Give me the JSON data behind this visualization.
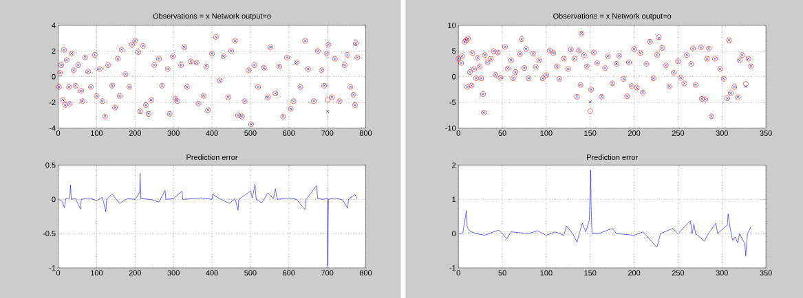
{
  "chart_data": [
    {
      "type": "scatter",
      "title": "Observations = x     Network output=o",
      "xlim": [
        0,
        800
      ],
      "ylim": [
        -4,
        4
      ],
      "xticks": [
        0,
        100,
        200,
        300,
        400,
        500,
        600,
        700,
        800
      ],
      "yticks": [
        -4,
        -2,
        0,
        2,
        4
      ],
      "grid": true,
      "x": [
        2,
        5,
        8,
        12,
        15,
        18,
        22,
        28,
        30,
        35,
        40,
        45,
        52,
        60,
        63,
        70,
        78,
        85,
        95,
        100,
        108,
        115,
        122,
        130,
        140,
        148,
        155,
        160,
        165,
        175,
        185,
        192,
        200,
        208,
        213,
        220,
        228,
        235,
        242,
        250,
        262,
        270,
        285,
        290,
        298,
        305,
        310,
        320,
        328,
        335,
        345,
        360,
        365,
        378,
        385,
        390,
        400,
        410,
        420,
        430,
        442,
        450,
        460,
        468,
        478,
        485,
        495,
        502,
        510,
        520,
        535,
        545,
        552,
        565,
        575,
        585,
        595,
        605,
        612,
        620,
        630,
        642,
        650,
        665,
        675,
        685,
        692,
        698,
        701,
        703,
        712,
        720,
        732,
        745,
        752,
        760,
        768,
        772,
        774,
        778
      ],
      "series": [
        {
          "color": "#0000ff",
          "marker": "cross",
          "values": [
            -0.8,
            0.3,
            0.9,
            -1.8,
            2.1,
            -2.2,
            1.3,
            -0.8,
            -2.1,
            1.8,
            0.5,
            -0.7,
            0.9,
            -1.1,
            -1.9,
            1.5,
            0.4,
            -0.8,
            1.7,
            -1.5,
            0.6,
            -1.9,
            -3.1,
            0.9,
            -0.7,
            -2.4,
            1.4,
            -1.5,
            2.1,
            0.2,
            -0.8,
            2.5,
            2.8,
            1.9,
            -2.7,
            2.4,
            -2.2,
            -2.9,
            -1.8,
            0.9,
            1.4,
            -0.7,
            0.6,
            -2.9,
            1.6,
            -1.7,
            -1.9,
            0.9,
            2.3,
            -0.8,
            1.2,
            1.1,
            -2.1,
            -1.5,
            0.8,
            -2.6,
            1.8,
            3.1,
            -0.3,
            1.6,
            -1.6,
            2.0,
            2.8,
            -3.0,
            -3.1,
            -1.9,
            0.5,
            -3.7,
            0.9,
            -0.8,
            0.7,
            -1.6,
            2.3,
            -1.3,
            0.8,
            -3.1,
            1.5,
            -2.5,
            -1.9,
            1.1,
            -0.8,
            2.8,
            0.6,
            -1.9,
            2.0,
            0.5,
            -0.7,
            1.8,
            -2.7,
            2.5,
            -1.6,
            1.4,
            -1.9,
            0.9,
            1.7,
            -0.8,
            -1.4,
            -2.2,
            2.6,
            1.5
          ]
        },
        {
          "color": "#ff0000",
          "marker": "circle",
          "values": [
            -0.8,
            0.3,
            0.9,
            -1.8,
            2.1,
            -2.2,
            1.3,
            -0.8,
            -2.1,
            1.8,
            0.5,
            -0.7,
            0.9,
            -1.1,
            -1.9,
            1.5,
            0.4,
            -0.8,
            1.7,
            -1.5,
            0.6,
            -1.9,
            -3.1,
            0.9,
            -0.7,
            -2.4,
            1.4,
            -1.5,
            2.1,
            0.2,
            -0.8,
            2.5,
            2.8,
            1.9,
            -2.7,
            2.4,
            -2.2,
            -2.9,
            -1.8,
            0.9,
            1.4,
            -0.7,
            0.6,
            -2.9,
            1.6,
            -1.7,
            -1.9,
            0.9,
            2.3,
            -0.8,
            1.2,
            1.1,
            -2.1,
            -1.5,
            0.8,
            -2.6,
            1.8,
            3.1,
            -0.3,
            1.6,
            -1.6,
            2.0,
            2.8,
            -3.0,
            -3.1,
            -1.9,
            0.5,
            -3.7,
            0.9,
            -0.8,
            0.7,
            -1.6,
            2.3,
            -1.3,
            0.8,
            -3.1,
            1.5,
            -2.5,
            -1.9,
            1.1,
            -0.8,
            2.8,
            0.6,
            -1.9,
            2.0,
            0.5,
            -0.7,
            1.8,
            -1.8,
            2.5,
            -1.6,
            1.4,
            -1.9,
            0.9,
            1.7,
            -0.8,
            -1.4,
            -2.2,
            2.6,
            1.5
          ]
        }
      ]
    },
    {
      "type": "scatter",
      "title": "Observations = x     Network output=o",
      "xlim": [
        0,
        350
      ],
      "ylim": [
        -10,
        10
      ],
      "xticks": [
        0,
        50,
        100,
        150,
        200,
        250,
        300,
        350
      ],
      "yticks": [
        -10,
        -5,
        0,
        5,
        10
      ],
      "grid": true,
      "x": [
        0,
        3,
        4,
        7,
        9,
        10,
        11,
        13,
        15,
        16,
        18,
        20,
        22,
        24,
        26,
        28,
        29,
        30,
        33,
        37,
        40,
        42,
        45,
        48,
        53,
        56,
        60,
        62,
        65,
        70,
        72,
        75,
        77,
        80,
        85,
        88,
        92,
        96,
        100,
        104,
        108,
        112,
        115,
        120,
        125,
        128,
        132,
        135,
        137,
        139,
        140,
        143,
        146,
        150,
        151,
        154,
        158,
        163,
        167,
        170,
        175,
        180,
        183,
        188,
        192,
        194,
        197,
        200,
        203,
        207,
        210,
        214,
        218,
        222,
        226,
        228,
        232,
        236,
        240,
        245,
        250,
        253,
        257,
        260,
        265,
        267,
        270,
        276,
        277,
        281,
        283,
        285,
        288,
        292,
        298,
        302,
        306,
        308,
        310,
        314,
        318,
        320,
        323,
        327,
        330,
        333
      ],
      "series": [
        {
          "color": "#0000ff",
          "marker": "cross",
          "values": [
            3.5,
            2.7,
            4,
            6.8,
            7.1,
            -2,
            7.4,
            0.9,
            -1.7,
            4.6,
            1.5,
            -0.3,
            3.7,
            2,
            -0.3,
            -3.4,
            -7,
            4.2,
            2.8,
            3.5,
            5,
            0.4,
            4.7,
            -0.2,
            5.8,
            1.6,
            3.2,
            -0.3,
            0.9,
            4.4,
            7.3,
            1.7,
            5.4,
            -0.3,
            4.5,
            1.9,
            3.2,
            -0.3,
            0.3,
            5.1,
            4.6,
            2.0,
            -0.4,
            3.5,
            1.5,
            5.3,
            3.5,
            -3.9,
            5.1,
            -1.6,
            8.4,
            4.2,
            2.0,
            -4.9,
            -2.5,
            4.7,
            2.7,
            -3.9,
            1.7,
            4,
            -1.3,
            2.5,
            4.1,
            -0.4,
            -3.8,
            2.8,
            -1.8,
            5.4,
            -2.1,
            4.6,
            -3.1,
            2.5,
            6.8,
            -0.3,
            4.3,
            7.5,
            5.6,
            2.2,
            -1.9,
            0.8,
            3,
            -0.2,
            -1.3,
            4.2,
            2.5,
            5.5,
            -1.6,
            5.7,
            -4.3,
            -4.4,
            3.5,
            5.5,
            -7.7,
            3.5,
            1.5,
            -0.4,
            -4.2,
            7.1,
            -3.2,
            -2,
            -4,
            3.2,
            4.2,
            -1.9,
            3.5,
            2
          ]
        },
        {
          "color": "#ff0000",
          "marker": "circle",
          "values": [
            3.5,
            2.7,
            4,
            6.8,
            7.1,
            -2,
            7.4,
            0.9,
            -1.7,
            4.6,
            1.5,
            -0.3,
            3.7,
            2,
            -0.3,
            -3.4,
            -7,
            4.2,
            2.8,
            3.5,
            5,
            0.4,
            4.7,
            -0.2,
            5.8,
            1.6,
            3.2,
            -0.3,
            0.9,
            4.4,
            7.3,
            1.7,
            5.4,
            -0.3,
            4.5,
            1.9,
            3.2,
            -0.3,
            0.3,
            5.1,
            4.6,
            2.0,
            -0.4,
            3.5,
            1.5,
            5.3,
            3.5,
            -3.9,
            5.1,
            -1.6,
            8.4,
            4.2,
            2.0,
            -6.7,
            -2.5,
            4.7,
            2.7,
            -3.9,
            1.7,
            4,
            -1.3,
            2.5,
            4.1,
            -0.4,
            -3.8,
            2.8,
            -1.8,
            5.4,
            -2.1,
            4.6,
            -3.1,
            2.5,
            6.8,
            -0.3,
            4.3,
            7.7,
            5.6,
            2.2,
            -1.9,
            0.8,
            3,
            -0.2,
            -1.3,
            4.2,
            2.5,
            5.5,
            -1.6,
            5.7,
            -4.3,
            -4.4,
            3.5,
            5.5,
            -7.7,
            3.5,
            1.5,
            -0.4,
            -4.2,
            7.1,
            -3.2,
            -2,
            -4,
            3.2,
            4.2,
            -1.4,
            3.5,
            2
          ]
        }
      ]
    },
    {
      "type": "line",
      "title": "Prediction error",
      "xlim": [
        0,
        800
      ],
      "ylim": [
        -1,
        0.5
      ],
      "xticks": [
        0,
        100,
        200,
        300,
        400,
        500,
        600,
        700,
        800
      ],
      "yticks": [
        -1,
        -0.5,
        0,
        0.5
      ],
      "grid": true,
      "x": [
        1,
        10,
        16,
        20,
        30,
        32,
        34,
        45,
        58,
        60,
        80,
        100,
        115,
        124,
        126,
        140,
        160,
        180,
        200,
        212,
        213,
        215,
        240,
        262,
        278,
        280,
        300,
        322,
        324,
        350,
        370,
        400,
        402,
        420,
        445,
        460,
        468,
        470,
        500,
        505,
        512,
        515,
        530,
        545,
        560,
        565,
        570,
        600,
        620,
        642,
        645,
        672,
        675,
        690,
        700,
        701,
        703,
        720,
        740,
        753,
        755,
        772,
        778
      ],
      "series": [
        {
          "color": "#0000ff",
          "values": [
            0,
            -0.03,
            -0.12,
            0.01,
            0.02,
            0.21,
            0,
            0.01,
            -0.14,
            0,
            0.02,
            -0.02,
            0.03,
            -0.18,
            0,
            0.08,
            -0.06,
            0.01,
            0,
            0.1,
            0.38,
            0.01,
            0,
            -0.04,
            0.13,
            0,
            0.01,
            0.12,
            0,
            0.01,
            0.02,
            0,
            0.07,
            0.01,
            -0.06,
            0.01,
            -0.16,
            0,
            0.12,
            0.02,
            0.22,
            0,
            -0.05,
            0.09,
            0.01,
            0.15,
            0,
            0.02,
            0,
            -0.15,
            0,
            0.2,
            0.01,
            0,
            0.02,
            -0.98,
            0,
            0.02,
            -0.01,
            -0.13,
            0,
            0.07,
            0.01
          ]
        }
      ]
    },
    {
      "type": "line",
      "title": "Prediction error",
      "xlim": [
        0,
        350
      ],
      "ylim": [
        -1,
        2
      ],
      "xticks": [
        0,
        50,
        100,
        150,
        200,
        250,
        300,
        350
      ],
      "yticks": [
        -1,
        0,
        1,
        2
      ],
      "grid": true,
      "x": [
        1,
        5,
        8,
        9,
        10,
        12,
        15,
        20,
        30,
        40,
        46,
        50,
        55,
        60,
        80,
        90,
        100,
        110,
        120,
        123,
        130,
        135,
        138,
        141,
        145,
        149,
        150,
        150.5,
        151,
        152,
        160,
        175,
        180,
        200,
        210,
        226,
        230,
        244,
        250,
        264,
        266,
        268,
        270,
        280,
        285,
        293,
        295,
        306,
        307,
        309,
        312,
        315,
        318,
        320,
        326,
        327,
        329,
        333
      ],
      "series": [
        {
          "color": "#0000ff",
          "values": [
            0,
            0.02,
            0.5,
            0.67,
            0.2,
            0.1,
            0.05,
            0,
            -0.05,
            0.05,
            0.1,
            0,
            -0.15,
            0.05,
            0,
            0.08,
            -0.05,
            0.05,
            -0.05,
            0.22,
            0,
            -0.25,
            0.05,
            0.3,
            0.05,
            0.4,
            1.38,
            1.85,
            0.9,
            0,
            0,
            0.15,
            0,
            -0.05,
            0.05,
            -0.4,
            0,
            0.15,
            0,
            0.37,
            0,
            0.27,
            0,
            -0.22,
            0.02,
            0.3,
            0,
            0.25,
            0.57,
            0.2,
            -0.2,
            -0.1,
            -0.27,
            0,
            -0.3,
            -0.65,
            0,
            0.2
          ]
        }
      ]
    }
  ]
}
